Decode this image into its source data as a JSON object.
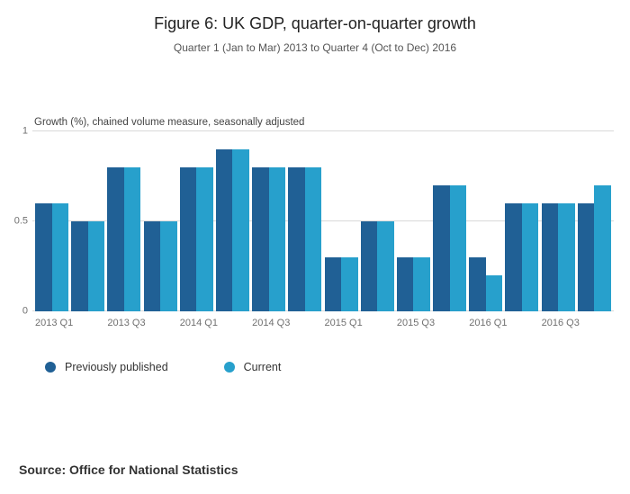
{
  "figure": {
    "title": "Figure 6: UK GDP, quarter-on-quarter growth",
    "subtitle": "Quarter 1 (Jan to Mar) 2013 to Quarter 4 (Oct to Dec) 2016",
    "axis_note": "Growth (%), chained volume measure, seasonally adjusted",
    "source": "Source: Office for National Statistics"
  },
  "legend": [
    {
      "label": "Previously published",
      "color": "#206095"
    },
    {
      "label": "Current",
      "color": "#27A0CC"
    }
  ],
  "chart_data": {
    "type": "bar",
    "title": "Figure 6: UK GDP, quarter-on-quarter growth",
    "subtitle": "Quarter 1 (Jan to Mar) 2013 to Quarter 4 (Oct to Dec) 2016",
    "ylabel": "Growth (%), chained volume measure, seasonally adjusted",
    "xlabel": "",
    "ylim": [
      0,
      1
    ],
    "yticks": [
      0,
      0.5,
      1
    ],
    "grid": true,
    "legend_position": "bottom",
    "categories": [
      "2013 Q1",
      "2013 Q2",
      "2013 Q3",
      "2013 Q4",
      "2014 Q1",
      "2014 Q2",
      "2014 Q3",
      "2014 Q4",
      "2015 Q1",
      "2015 Q2",
      "2015 Q3",
      "2015 Q4",
      "2016 Q1",
      "2016 Q2",
      "2016 Q3",
      "2016 Q4"
    ],
    "x_tick_labels": [
      "2013 Q1",
      "2013 Q3",
      "2014 Q1",
      "2014 Q3",
      "2015 Q1",
      "2015 Q3",
      "2016 Q1",
      "2016 Q3"
    ],
    "series": [
      {
        "name": "Previously published",
        "color": "#206095",
        "values": [
          0.6,
          0.5,
          0.8,
          0.5,
          0.8,
          0.9,
          0.8,
          0.8,
          0.3,
          0.5,
          0.3,
          0.7,
          0.3,
          0.6,
          0.6,
          0.6
        ]
      },
      {
        "name": "Current",
        "color": "#27A0CC",
        "values": [
          0.6,
          0.5,
          0.8,
          0.5,
          0.8,
          0.9,
          0.8,
          0.8,
          0.3,
          0.5,
          0.3,
          0.7,
          0.2,
          0.6,
          0.6,
          0.7
        ]
      }
    ]
  }
}
